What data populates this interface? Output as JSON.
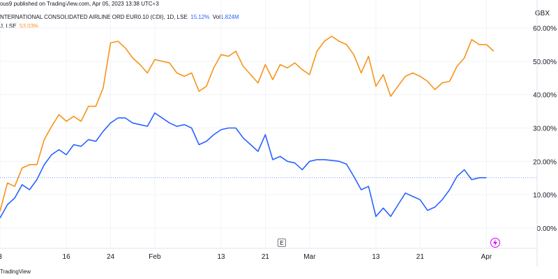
{
  "header": {
    "published_line": "ous9 published on TradingView.com, Apr 05, 2023 13:38 UTC+3",
    "symbol1": "NTERNATIONAL CONSOLIDATED AIRLINE ORD EUR0.10 (CDI), 1D, LSE",
    "symbol1_change": "15.12%",
    "symbol1_vol_label": "Vol",
    "symbol1_vol": "1.824M",
    "symbol2": "J, LSE",
    "symbol2_change": "53.03%",
    "currency": "GBX"
  },
  "footer": {
    "text": "TradingView"
  },
  "markers": {
    "earnings": "E",
    "dividend_icon": "bolt-icon"
  },
  "colors": {
    "blue": "#2962ff",
    "orange": "#f7931a",
    "grid": "#f0f3fa",
    "bolt": "#d500f9"
  },
  "chart_data": {
    "type": "line",
    "ylim": [
      -1.5,
      64.5
    ],
    "y_ticks": [
      "0.00%",
      "10.00%",
      "20.00%",
      "30.00%",
      "40.00%",
      "50.00%",
      "60.00%"
    ],
    "y_tick_values": [
      0,
      10,
      20,
      30,
      40,
      50,
      60
    ],
    "x_tick_labels": [
      "3",
      "16",
      "24",
      "Feb",
      "13",
      "21",
      "Mar",
      "13",
      "21",
      "Apr"
    ],
    "x_tick_index": [
      0,
      9,
      15,
      21,
      30,
      36,
      42,
      51,
      57,
      66
    ],
    "x_count": 70,
    "reference_level": 15.12,
    "series": [
      {
        "color": "#f7931a",
        "last_value": 53.03,
        "values": [
          5,
          13.5,
          12.5,
          18,
          19,
          19,
          26.5,
          30.5,
          34,
          32,
          33.5,
          32,
          36.5,
          36.5,
          42,
          55.5,
          56,
          54,
          51,
          49,
          46.5,
          50.5,
          50,
          49.5,
          46.5,
          45.5,
          46.5,
          41,
          42.5,
          48,
          52,
          51.5,
          53,
          48.5,
          46,
          43.5,
          49,
          44.5,
          49,
          48,
          49.5,
          47.5,
          46,
          53,
          56,
          57.5,
          56,
          55,
          52,
          46.5,
          51.5,
          42.5,
          46,
          39.5,
          42.5,
          45.5,
          46.5,
          45.5,
          44,
          41.5,
          43.5,
          44,
          48.5,
          51,
          56.5,
          55,
          55,
          53
        ]
      },
      {
        "color": "#2962ff",
        "last_value": 15.12,
        "values": [
          3,
          7,
          9,
          13,
          11.5,
          14.5,
          19,
          22,
          23.5,
          22,
          25,
          24.5,
          26.5,
          26,
          29,
          31.5,
          33,
          33,
          31.5,
          31,
          30.5,
          34.5,
          33,
          31.5,
          30.5,
          31,
          30,
          25,
          26,
          28,
          29.5,
          30,
          30,
          27,
          25,
          23,
          28,
          20.5,
          21.5,
          20,
          19.5,
          17.5,
          20,
          20.5,
          20.5,
          20.3,
          20,
          19.2,
          15.5,
          11.5,
          12.5,
          3.5,
          6,
          3.5,
          7,
          10.5,
          9.5,
          8.5,
          5.3,
          6.3,
          8.5,
          11.5,
          15.5,
          17.5,
          14.5,
          15.1,
          15.12
        ]
      }
    ]
  }
}
